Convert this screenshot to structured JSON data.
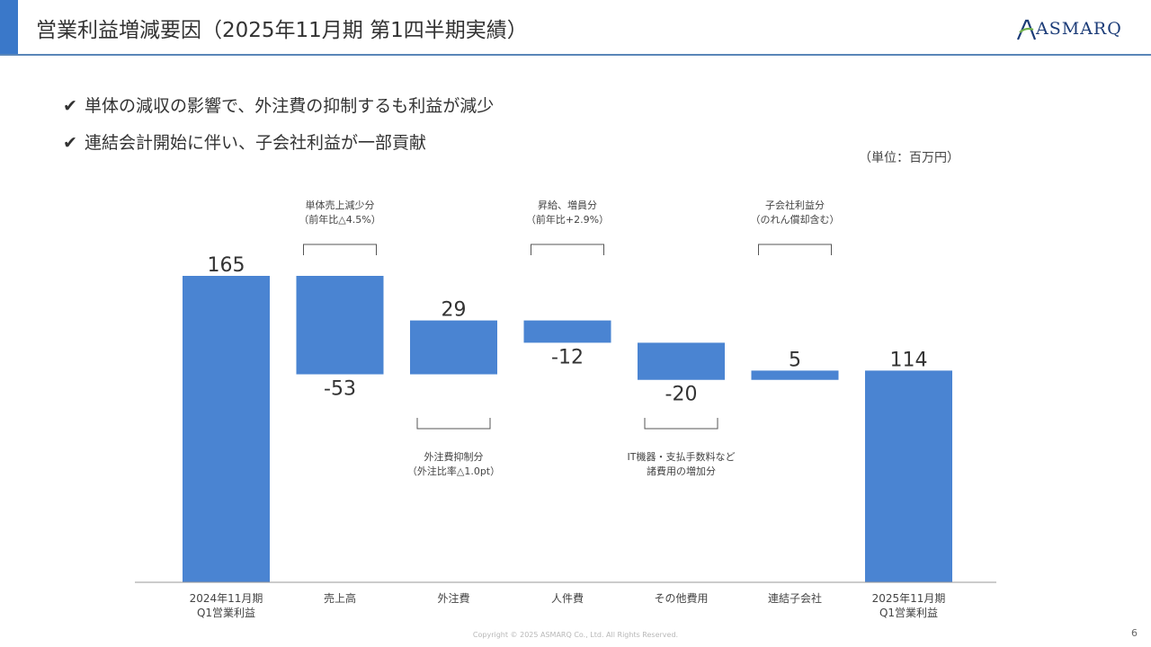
{
  "header": {
    "title": "営業利益増減要因（2025年11月期 第1四半期実績）",
    "logo_text": "ASMARQ"
  },
  "bullets": [
    "単体の減収の影響で、外注費の抑制するも利益が減少",
    "連結会計開始に伴い、子会社利益が一部貢献"
  ],
  "check_glyph": "✔",
  "unit_label": "（単位：百万円）",
  "chart_data": {
    "type": "bar",
    "subtype": "waterfall",
    "title": "",
    "xlabel": "",
    "ylabel": "",
    "ylim": [
      0,
      165
    ],
    "grid": false,
    "bar_color": "#4a84d2",
    "categories": [
      [
        "2024年11月期",
        "Q1営業利益"
      ],
      [
        "売上高"
      ],
      [
        "外注費"
      ],
      [
        "人件費"
      ],
      [
        "その他費用"
      ],
      [
        "連結子会社"
      ],
      [
        "2025年11月期",
        "Q1営業利益"
      ]
    ],
    "values": [
      165,
      -53,
      29,
      -12,
      -20,
      5,
      114
    ],
    "value_labels": [
      "165",
      "-53",
      "29",
      "-12",
      "-20",
      "5",
      "114"
    ],
    "is_total": [
      true,
      false,
      false,
      false,
      false,
      false,
      true
    ],
    "annotations": [
      {
        "bar": 1,
        "position": "above",
        "lines": [
          "単体売上減少分",
          "（前年比△4.5%）"
        ]
      },
      {
        "bar": 2,
        "position": "below",
        "lines": [
          "外注費抑制分",
          "（外注比率△1.0pt）"
        ]
      },
      {
        "bar": 3,
        "position": "above",
        "lines": [
          "昇給、増員分",
          "（前年比+2.9%）"
        ]
      },
      {
        "bar": 4,
        "position": "below",
        "lines": [
          "IT機器・支払手数料など",
          "諸費用の増加分"
        ]
      },
      {
        "bar": 5,
        "position": "above",
        "lines": [
          "子会社利益分",
          "（のれん償却含む）"
        ]
      }
    ]
  },
  "footer": {
    "copyright": "Copyright © 2025 ASMARQ Co., Ltd. All Rights Reserved.",
    "page_number": "6"
  }
}
